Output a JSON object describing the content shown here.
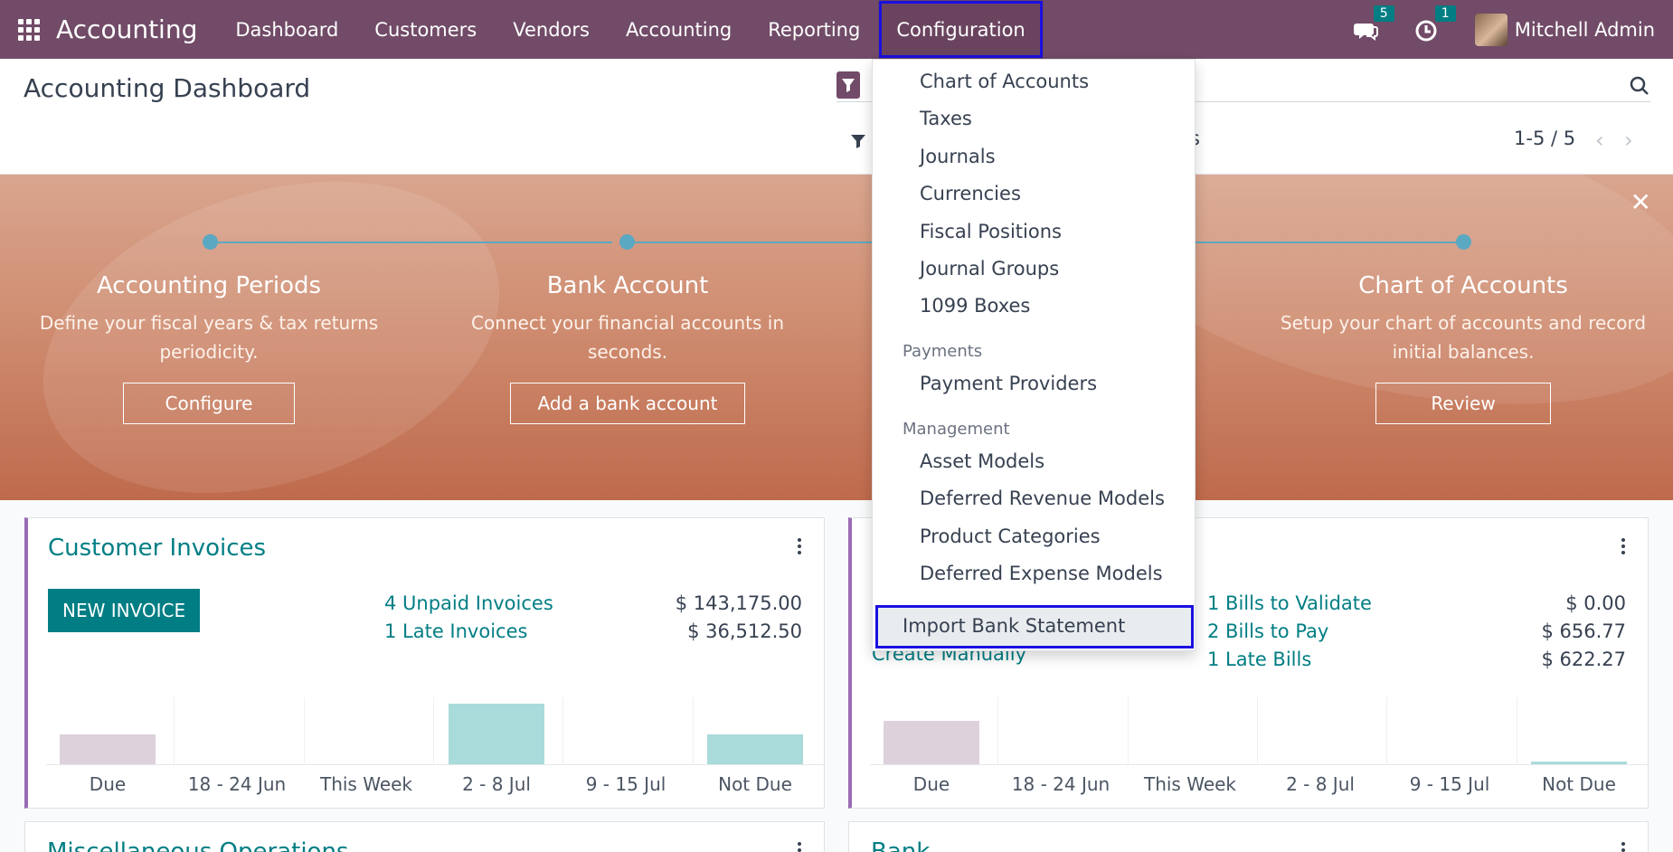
{
  "navbar": {
    "app_name": "Accounting",
    "menu": [
      "Dashboard",
      "Customers",
      "Vendors",
      "Accounting",
      "Reporting",
      "Configuration"
    ],
    "messages_count": "5",
    "activities_count": "1",
    "user_name": "Mitchell Admin"
  },
  "control_panel": {
    "title": "Accounting Dashboard",
    "filter_tail": "s",
    "pager": "1-5 / 5"
  },
  "banner": {
    "steps": [
      {
        "title": "Accounting Periods",
        "desc": "Define your fiscal years & tax returns periodicity.",
        "button": "Configure"
      },
      {
        "title": "Bank Account",
        "desc": "Connect your financial accounts in seconds.",
        "button": "Add a bank account"
      },
      {
        "title": "Chart of Accounts",
        "desc": "Setup your chart of accounts and record initial balances.",
        "button": "Review"
      }
    ]
  },
  "dropdown": {
    "items": [
      "Chart of Accounts",
      "Taxes",
      "Journals",
      "Currencies",
      "Fiscal Positions",
      "Journal Groups",
      "1099 Boxes"
    ],
    "payments_header": "Payments",
    "payments_items": [
      "Payment Providers"
    ],
    "management_header": "Management",
    "management_items": [
      "Asset Models",
      "Deferred Revenue Models",
      "Product Categories",
      "Deferred Expense Models"
    ],
    "import_item": "Import Bank Statement"
  },
  "cards": {
    "customer_invoices": {
      "title": "Customer Invoices",
      "button": "NEW INVOICE",
      "stats": [
        {
          "label": "4 Unpaid Invoices",
          "value": "$ 143,175.00"
        },
        {
          "label": "1 Late Invoices",
          "value": "$ 36,512.50"
        }
      ]
    },
    "vendor_bills": {
      "partial_text": "Create Manually",
      "stats": [
        {
          "label": "1 Bills to Validate",
          "value": "$ 0.00"
        },
        {
          "label": "2 Bills to Pay",
          "value": "$ 656.77"
        },
        {
          "label": "1 Late Bills",
          "value": "$ 622.27"
        }
      ]
    },
    "misc": {
      "title": "Miscellaneous Operations"
    },
    "bank": {
      "title": "Bank"
    }
  },
  "chart_data": [
    {
      "type": "bar",
      "categories": [
        "Due",
        "18 - 24 Jun",
        "This Week",
        "2 - 8 Jul",
        "9 - 15 Jul",
        "Not Due"
      ],
      "values": [
        0.45,
        0,
        0,
        0.9,
        0,
        0.45
      ],
      "colors": [
        "#ddd2dc",
        "#ddd2dc",
        "#a9dbda",
        "#a9dbda",
        "#a9dbda",
        "#a9dbda"
      ]
    },
    {
      "type": "bar",
      "categories": [
        "Due",
        "18 - 24 Jun",
        "This Week",
        "2 - 8 Jul",
        "9 - 15 Jul",
        "Not Due"
      ],
      "values": [
        0.65,
        0,
        0,
        0,
        0,
        0.04
      ],
      "colors": [
        "#ddd2dc",
        "#ddd2dc",
        "#a9dbda",
        "#a9dbda",
        "#a9dbda",
        "#a9dbda"
      ]
    }
  ]
}
